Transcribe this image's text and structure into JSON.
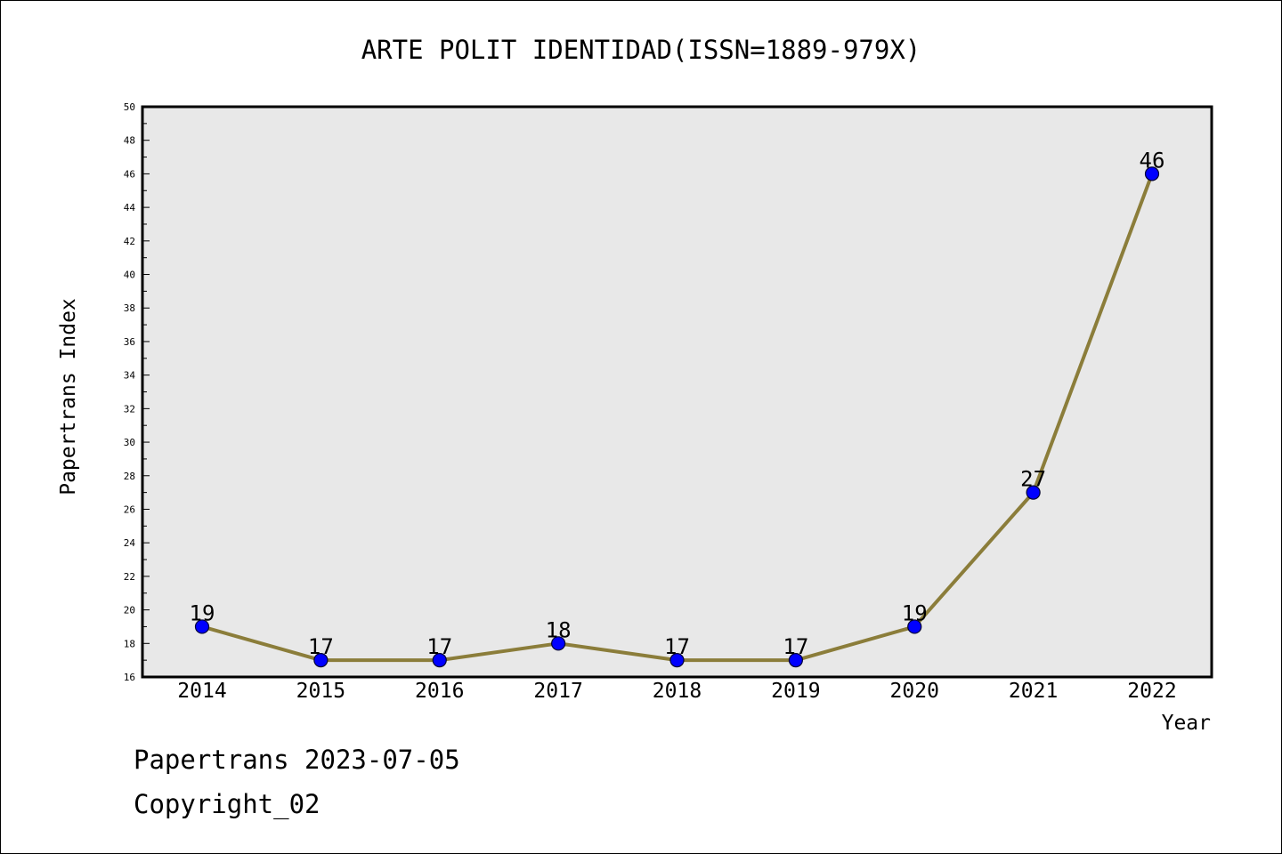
{
  "chart_data": {
    "type": "line",
    "title": "ARTE POLIT IDENTIDAD(ISSN=1889-979X)",
    "xlabel": "Year",
    "ylabel": "Papertrans Index",
    "categories": [
      "2014",
      "2015",
      "2016",
      "2017",
      "2018",
      "2019",
      "2020",
      "2021",
      "2022"
    ],
    "series": [
      {
        "values": [
          19,
          17,
          17,
          18,
          17,
          17,
          19,
          27,
          46
        ]
      }
    ],
    "data_labels": [
      "19",
      "17",
      "17",
      "18",
      "17",
      "17",
      "19",
      "27",
      "46"
    ],
    "ylim": [
      16,
      50
    ],
    "ytick_step": 2,
    "grid": false,
    "legend": "none",
    "colors": {
      "line": "#8b7d3a",
      "marker": "#0000ff",
      "marker_edge": "#000033",
      "plot_background": "#e8e8e8"
    }
  },
  "footer": {
    "line1": "Papertrans 2023-07-05",
    "line2": "Copyright_02"
  }
}
